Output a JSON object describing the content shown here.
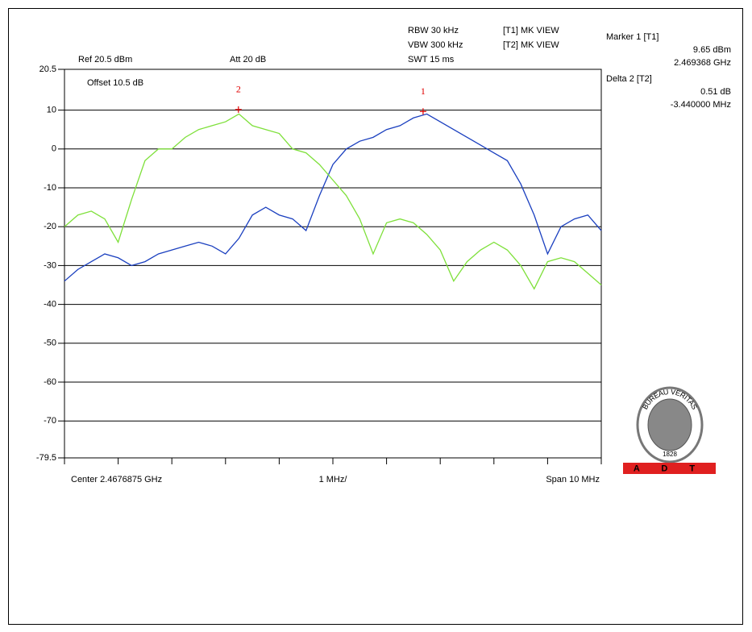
{
  "chart_data": {
    "type": "line",
    "annotations": {
      "ref": "Ref 20.5 dBm",
      "att": "Att 20 dB",
      "offset": "Offset 10.5 dB",
      "rbw": "RBW 30 kHz",
      "vbw": "VBW 300 kHz",
      "swt": "SWT 15 ms",
      "t1": "[T1] MK VIEW",
      "t2": "[T2] MK VIEW",
      "center": "Center 2.4676875 GHz",
      "div": "1 MHz/",
      "span": "Span 10 MHz"
    },
    "readout": {
      "marker_title": "Marker 1 [T1]",
      "marker_level": "9.65 dBm",
      "marker_freq": "2.469368 GHz",
      "delta_title": "Delta 2 [T2]",
      "delta_level": "0.51 dB",
      "delta_freq": "-3.440000 MHz"
    },
    "logo": {
      "ring": "BUREAU VERITAS",
      "year": "1828",
      "band": "A D T"
    },
    "xlim": [
      2.4626875,
      2.4726875
    ],
    "xticks": [
      2.4626875,
      2.4636875,
      2.4646875,
      2.4656875,
      2.4666875,
      2.4676875,
      2.4686875,
      2.4696875,
      2.4706875,
      2.4716875,
      2.4726875
    ],
    "ylim": [
      -79.5,
      20.5
    ],
    "yticks": [
      20.5,
      10,
      0,
      -10,
      -20,
      -30,
      -40,
      -50,
      -60,
      -70,
      -79.5
    ],
    "grid": true,
    "x": [
      2.4626875,
      2.4629375,
      2.4631875,
      2.4634375,
      2.4636875,
      2.4639375,
      2.4641875,
      2.4644375,
      2.4646875,
      2.4649375,
      2.4651875,
      2.4654375,
      2.4656875,
      2.4659375,
      2.4661875,
      2.4664375,
      2.4666875,
      2.4669375,
      2.4671875,
      2.4674375,
      2.4676875,
      2.4679375,
      2.4681875,
      2.4684375,
      2.4686875,
      2.4689375,
      2.4691875,
      2.4694375,
      2.4696875,
      2.4699375,
      2.4701875,
      2.4704375,
      2.4706875,
      2.4709375,
      2.4711875,
      2.4714375,
      2.4716875,
      2.4719375,
      2.4721875,
      2.4724375,
      2.4726875
    ],
    "series": [
      {
        "color": "#1a3fbf",
        "values": [
          -34,
          -31,
          -29,
          -27,
          -28,
          -30,
          -29,
          -27,
          -26,
          -25,
          -24,
          -25,
          -27,
          -23,
          -17,
          -15,
          -17,
          -18,
          -21,
          -12,
          -4,
          0,
          2,
          3,
          5,
          6,
          8,
          9,
          7,
          5,
          3,
          1,
          -1,
          -3,
          -9,
          -17,
          -27,
          -20,
          -18,
          -17,
          -21
        ]
      },
      {
        "color": "#7ee03a",
        "values": [
          -20,
          -17,
          -16,
          -18,
          -24,
          -13,
          -3,
          0,
          0,
          3,
          5,
          6,
          7,
          9,
          6,
          5,
          4,
          0,
          -1,
          -4,
          -8,
          -12,
          -18,
          -27,
          -19,
          -18,
          -19,
          -22,
          -26,
          -34,
          -29,
          -26,
          -24,
          -26,
          -30,
          -36,
          -29,
          -28,
          -29,
          -32,
          -35
        ]
      }
    ],
    "markers": [
      {
        "label": "1",
        "x": 2.469368,
        "y": 9.65
      },
      {
        "label": "2",
        "x": 2.465928,
        "y": 10.16
      }
    ]
  }
}
